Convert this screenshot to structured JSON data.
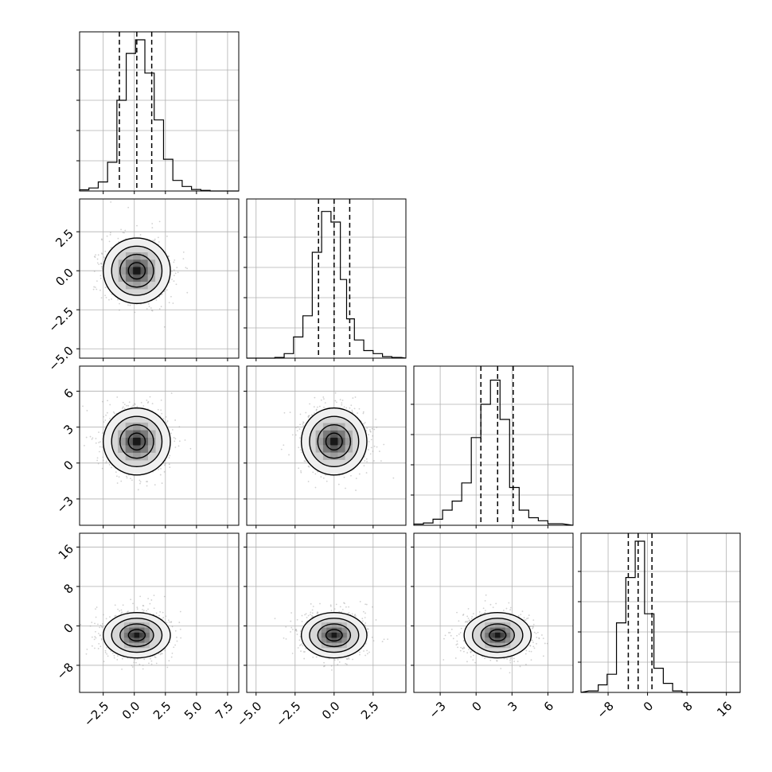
{
  "chart_data": {
    "type": "corner",
    "style": {
      "line_color": "#000000",
      "grid_color": "#b0b0b0",
      "scatter_color": "#9a9a9a"
    },
    "parameters": [
      {
        "ticks": [
          -2.5,
          0.0,
          2.5,
          5.0,
          7.5
        ],
        "tick_labels": [
          "−2.5",
          "0.0",
          "2.5",
          "5.0",
          "7.5"
        ],
        "range": [
          -4.4,
          8.4
        ],
        "quantiles": [
          -1.2,
          0.2,
          1.4
        ]
      },
      {
        "ticks": [
          -5.0,
          -2.5,
          0.0,
          2.5
        ],
        "tick_labels": [
          "−5.0",
          "−2.5",
          "0.0",
          "2.5"
        ],
        "range": [
          -5.6,
          4.6
        ],
        "quantiles": [
          -1.0,
          0.0,
          1.0
        ]
      },
      {
        "ticks": [
          -3,
          0,
          3,
          6
        ],
        "tick_labels": [
          "−3",
          "0",
          "3",
          "6"
        ],
        "range": [
          -5.2,
          8.1
        ],
        "quantiles": [
          0.4,
          1.8,
          3.1
        ]
      },
      {
        "ticks": [
          -8,
          0,
          8,
          16
        ],
        "tick_labels": [
          "−8",
          "0",
          "8",
          "16"
        ],
        "range": [
          -13.5,
          18.8
        ],
        "quantiles": [
          -3.9,
          -1.9,
          0.9
        ]
      }
    ],
    "histograms": [
      {
        "bin_edges": [
          -4.4,
          -3.65,
          -2.9,
          -2.15,
          -1.4,
          -0.65,
          0.1,
          0.85,
          1.6,
          2.35,
          3.1,
          3.85,
          4.6,
          5.35,
          6.1,
          6.85,
          7.6,
          8.35
        ],
        "counts": [
          0.008,
          0.02,
          0.06,
          0.19,
          0.6,
          0.91,
          1.0,
          0.78,
          0.47,
          0.21,
          0.07,
          0.03,
          0.01,
          0.004,
          0.0,
          0.0,
          0.0
        ]
      },
      {
        "bin_edges": [
          -5.6,
          -5.0,
          -4.4,
          -3.8,
          -3.2,
          -2.6,
          -2.0,
          -1.4,
          -0.8,
          -0.2,
          0.4,
          0.8,
          1.3,
          1.9,
          2.5,
          3.1,
          3.7,
          4.3
        ],
        "counts": [
          0.0,
          0.0,
          0.0,
          0.005,
          0.03,
          0.14,
          0.28,
          0.7,
          0.97,
          0.9,
          0.52,
          0.26,
          0.12,
          0.05,
          0.03,
          0.01,
          0.005
        ]
      },
      {
        "bin_edges": [
          -5.2,
          -4.4,
          -3.6,
          -2.8,
          -2.0,
          -1.2,
          -0.4,
          0.4,
          1.2,
          2.0,
          2.8,
          3.6,
          4.4,
          5.2,
          6.0,
          7.2
        ],
        "counts": [
          0.008,
          0.015,
          0.04,
          0.1,
          0.16,
          0.28,
          0.58,
          0.8,
          0.96,
          0.7,
          0.25,
          0.1,
          0.05,
          0.03,
          0.01
        ]
      },
      {
        "bin_edges": [
          -11.9,
          -10.0,
          -8.2,
          -6.3,
          -4.4,
          -2.5,
          -0.6,
          1.3,
          3.2,
          5.1,
          7.0,
          8.9
        ],
        "counts": [
          0.01,
          0.05,
          0.12,
          0.46,
          0.76,
          1.0,
          0.52,
          0.16,
          0.06,
          0.01,
          0.0
        ]
      }
    ],
    "pairs": [
      {
        "row": 1,
        "col": 0,
        "center": [
          0.2,
          0.0
        ],
        "sigma": [
          1.35,
          1.05
        ]
      },
      {
        "row": 2,
        "col": 0,
        "center": [
          0.2,
          1.8
        ],
        "sigma": [
          1.35,
          1.4
        ]
      },
      {
        "row": 2,
        "col": 1,
        "center": [
          0.0,
          1.8
        ],
        "sigma": [
          1.05,
          1.4
        ]
      },
      {
        "row": 3,
        "col": 0,
        "center": [
          0.2,
          -1.9
        ],
        "sigma": [
          1.35,
          2.3
        ]
      },
      {
        "row": 3,
        "col": 1,
        "center": [
          0.0,
          -1.9
        ],
        "sigma": [
          1.05,
          2.3
        ]
      },
      {
        "row": 3,
        "col": 2,
        "center": [
          1.8,
          -1.9
        ],
        "sigma": [
          1.4,
          2.3
        ]
      }
    ]
  }
}
